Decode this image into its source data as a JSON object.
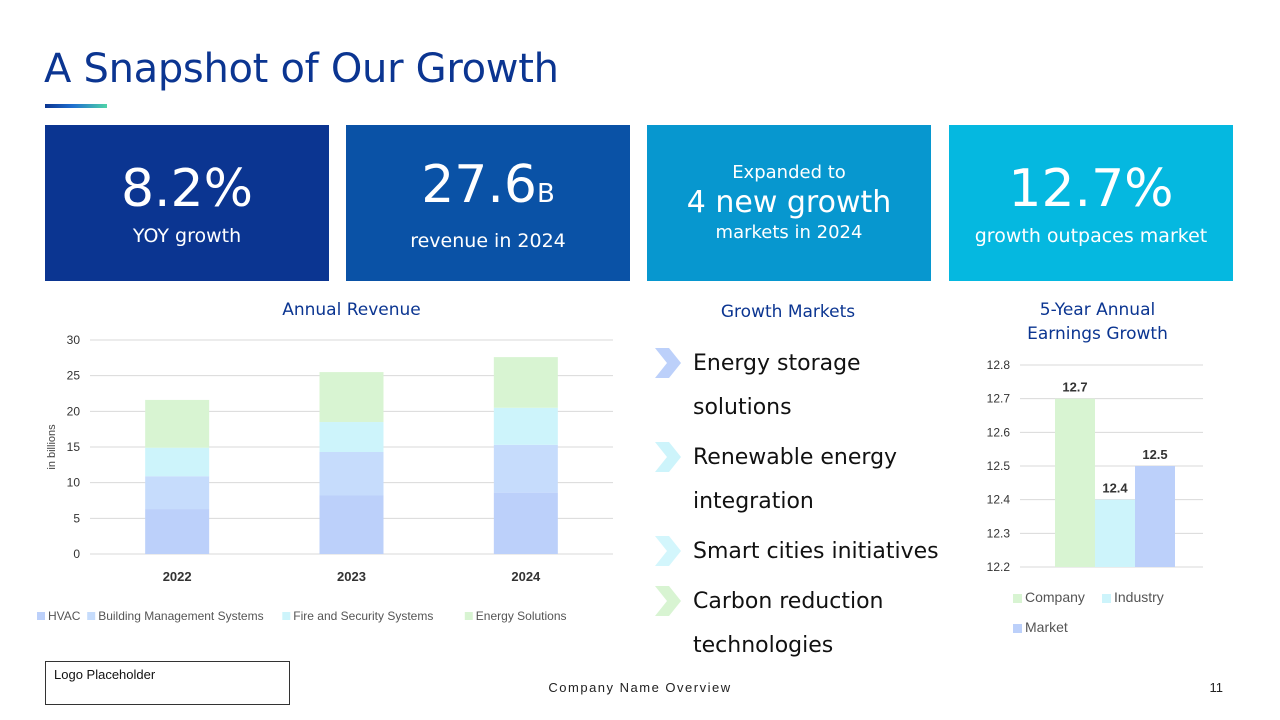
{
  "title": "A Snapshot of Our Growth",
  "colors": {
    "title": "#0b3591",
    "box1": "#0b3591",
    "box2": "#0a52a6",
    "box3": "#0797cf",
    "box4": "#05b8e0",
    "hvac": "#bcd0fa",
    "bms": "#c6dcfc",
    "fire": "#cdf4fb",
    "energy": "#d8f4d2"
  },
  "stats": [
    {
      "value": "8.2%",
      "label": "YOY growth"
    },
    {
      "value": "27.6",
      "unit": "B",
      "label": "revenue in 2024"
    },
    {
      "pre": "Expanded to",
      "value": "4 new growth",
      "label": "markets in 2024"
    },
    {
      "value": "12.7%",
      "label": "growth outpaces market"
    }
  ],
  "growth_markets": {
    "title": "Growth Markets",
    "items": [
      {
        "label": "Energy storage solutions",
        "icon": "chevron-right-icon",
        "color": "#bcd0fa"
      },
      {
        "label": "Renewable energy integration",
        "icon": "chevron-right-icon",
        "color": "#cdf4fb"
      },
      {
        "label": "Smart cities initiatives",
        "icon": "chevron-right-icon",
        "color": "#d3f6fc"
      },
      {
        "label": "Carbon reduction technologies",
        "icon": "chevron-right-icon",
        "color": "#d8f4d2"
      }
    ]
  },
  "chart_data": [
    {
      "type": "bar",
      "stacked": true,
      "title": "Annual Revenue",
      "xlabel": "",
      "ylabel": "in billions",
      "ylim": [
        0,
        30
      ],
      "yticks": [
        0,
        5,
        10,
        15,
        20,
        25,
        30
      ],
      "categories": [
        "2022",
        "2023",
        "2024"
      ],
      "series": [
        {
          "name": "HVAC",
          "values": [
            6.3,
            8.2,
            8.6
          ],
          "color": "#bcd0fa"
        },
        {
          "name": "Building Management Systems",
          "values": [
            4.6,
            6.1,
            6.7
          ],
          "color": "#c6dcfc"
        },
        {
          "name": "Fire and Security Systems",
          "values": [
            4.0,
            4.2,
            5.2
          ],
          "color": "#cdf4fb"
        },
        {
          "name": "Energy Solutions",
          "values": [
            6.7,
            7.0,
            7.1
          ],
          "color": "#d8f4d2"
        }
      ],
      "grid": true,
      "legend": "bottom"
    },
    {
      "type": "bar",
      "title": "5-Year Annual Earnings Growth",
      "title_lines": [
        "5-Year Annual",
        "Earnings Growth"
      ],
      "xlabel": "",
      "ylabel": "",
      "ylim": [
        12.2,
        12.8
      ],
      "yticks": [
        "12.2",
        "12.3",
        "12.4",
        "12.5",
        "12.6",
        "12.7",
        "12.8"
      ],
      "categories": [
        ""
      ],
      "series": [
        {
          "name": "Company",
          "values": [
            12.7
          ],
          "label": "12.7",
          "color": "#d8f4d2"
        },
        {
          "name": "Industry",
          "values": [
            12.4
          ],
          "label": "12.4",
          "color": "#cdf4fb"
        },
        {
          "name": "Market",
          "values": [
            12.5
          ],
          "label": "12.5",
          "color": "#bcd0fa"
        }
      ],
      "grid": true,
      "legend": "bottom"
    }
  ],
  "footer": {
    "logo": "Logo Placeholder",
    "center": "Company Name Overview",
    "page": "11"
  }
}
